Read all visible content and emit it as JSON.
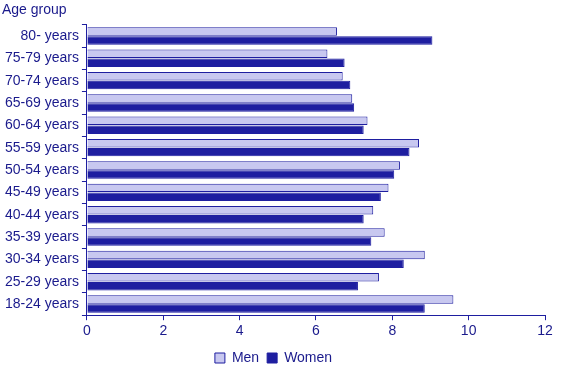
{
  "chart_data": {
    "type": "bar",
    "orientation": "horizontal",
    "ylabel": "Age group",
    "categories": [
      "80- years",
      "75-79 years",
      "70-74 years",
      "65-69 years",
      "60-64 years",
      "55-59 years",
      "50-54 years",
      "45-49 years",
      "40-44 years",
      "35-39 years",
      "30-34 years",
      "25-29 years",
      "18-24 years"
    ],
    "series": [
      {
        "name": "Men",
        "color": "#c8c8f0",
        "values": [
          6.55,
          6.3,
          6.7,
          6.95,
          7.35,
          8.7,
          8.2,
          7.9,
          7.5,
          7.8,
          8.85,
          7.65,
          9.6
        ]
      },
      {
        "name": "Women",
        "color": "#1e1ea0",
        "values": [
          9.05,
          6.75,
          6.9,
          7.0,
          7.25,
          8.45,
          8.05,
          7.7,
          7.25,
          7.45,
          8.3,
          7.1,
          8.85
        ]
      }
    ],
    "xlim": [
      0,
      12
    ],
    "xticks": [
      0,
      2,
      4,
      6,
      8,
      10,
      12
    ],
    "grid": false,
    "legend": "bottom"
  }
}
